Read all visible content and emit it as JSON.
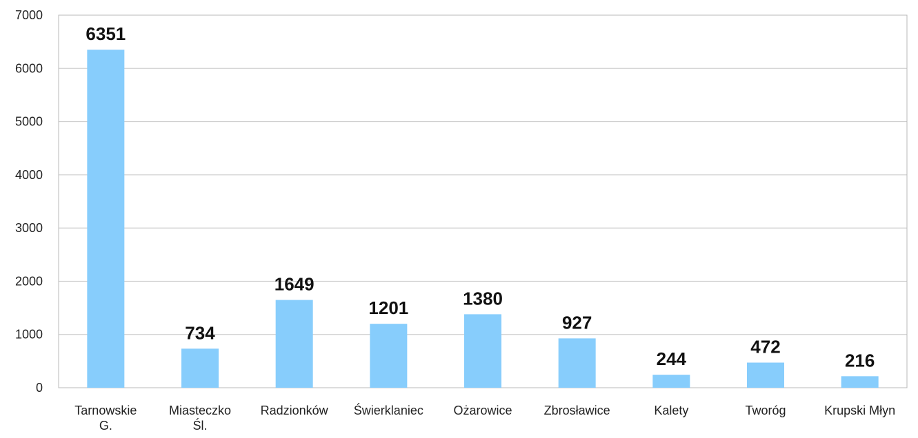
{
  "chart_data": {
    "type": "bar",
    "categories": [
      "Tarnowskie G.",
      "Miasteczko Śl.",
      "Radzionków",
      "Świerklaniec",
      "Ożarowice",
      "Zbrosławice",
      "Kalety",
      "Tworóg",
      "Krupski Młyn"
    ],
    "values": [
      6351,
      734,
      1649,
      1201,
      1380,
      927,
      244,
      472,
      216
    ],
    "color": "#87cdfc",
    "ylim": [
      0,
      7000
    ],
    "yticks": [
      0,
      1000,
      2000,
      3000,
      4000,
      5000,
      6000,
      7000
    ],
    "grid": true
  }
}
